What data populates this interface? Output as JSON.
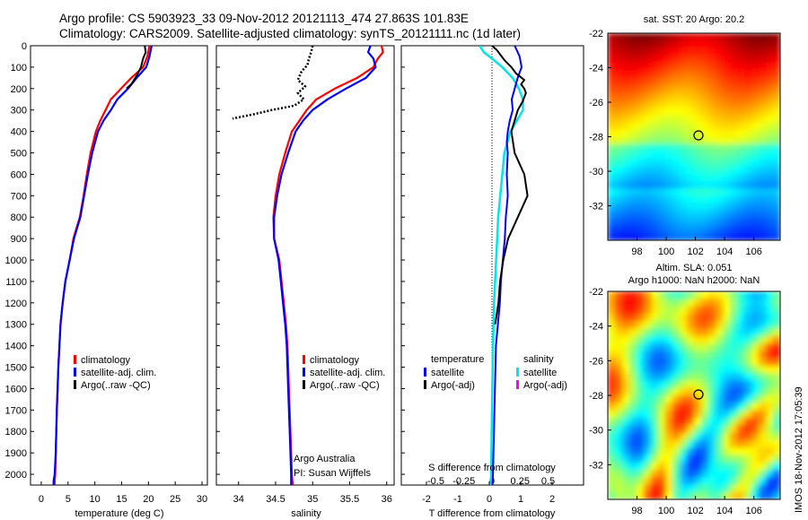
{
  "header": {
    "line1": "Argo profile: CS 5903923_33 09-Nov-2012 20121113_474 27.863S 101.83E",
    "line2": "Climatology: CARS2009. Satellite-adjusted climatology: synTS_20121111.nc (1d later)"
  },
  "side_text": "IMOS 18-Nov-2012 17:05:39",
  "colors": {
    "climatology": "#ff0000",
    "satellite": "#0000ff",
    "argo": "#000000",
    "satellite_salinity": "#00e5e5",
    "argo_salinity_adj": "#ff00ff"
  },
  "chart_data": [
    {
      "type": "line",
      "name": "temperature-profile",
      "xlabel": "temperature (deg C)",
      "ylabel": "",
      "xlim": [
        -2,
        31
      ],
      "ylim": [
        0,
        2050
      ],
      "y_reversed": true,
      "xticks": [
        "0",
        "5",
        "10",
        "15",
        "20",
        "25",
        "30"
      ],
      "yticks": [
        "0",
        "100",
        "200",
        "300",
        "400",
        "500",
        "600",
        "700",
        "800",
        "900",
        "1000",
        "1100",
        "1200",
        "1300",
        "1400",
        "1500",
        "1600",
        "1700",
        "1800",
        "1900",
        "2000"
      ],
      "legend": [
        "climatology",
        "satellite-adj. clim.",
        "Argo(..raw -QC)"
      ],
      "series": [
        {
          "name": "climatology",
          "x": [
            20.2,
            19.8,
            19.0,
            16.8,
            14.9,
            13.0,
            12.0,
            11.0,
            10.2,
            9.2,
            8.5,
            7.9,
            7.2,
            6.6,
            6.0,
            5.3,
            4.5,
            4.0,
            3.6,
            3.2,
            2.9,
            2.7,
            2.6,
            2.5,
            2.5
          ],
          "y": [
            0,
            50,
            100,
            150,
            200,
            250,
            300,
            350,
            400,
            500,
            600,
            700,
            800,
            850,
            900,
            1000,
            1100,
            1200,
            1300,
            1500,
            1700,
            1900,
            2000,
            2030,
            2050
          ]
        },
        {
          "name": "satellite-adj. clim.",
          "x": [
            20.6,
            20.2,
            19.6,
            17.8,
            16.2,
            14.2,
            13.0,
            11.6,
            10.6,
            9.5,
            8.7,
            8.0,
            7.3,
            6.7,
            6.1,
            5.3,
            4.5,
            4.0,
            3.6,
            3.2,
            2.9,
            2.7,
            2.5,
            2.3,
            2.3
          ],
          "y": [
            0,
            50,
            100,
            150,
            200,
            250,
            300,
            350,
            400,
            500,
            600,
            700,
            800,
            850,
            900,
            1000,
            1100,
            1200,
            1300,
            1500,
            1700,
            1900,
            2000,
            2030,
            2050
          ]
        },
        {
          "name": "Argo(..raw -QC)",
          "x": [
            19.3,
            19.5,
            19.0,
            18.6,
            17.8,
            16.8,
            15.9
          ],
          "y": [
            0,
            30,
            60,
            100,
            140,
            180,
            200
          ]
        }
      ]
    },
    {
      "type": "line",
      "name": "salinity-profile",
      "xlabel": "salinity",
      "xlim": [
        33.7,
        36.1
      ],
      "ylim": [
        0,
        2050
      ],
      "y_reversed": true,
      "xticks": [
        "34",
        "34.5",
        "35",
        "35.5",
        "36"
      ],
      "legend": [
        "climatology",
        "satellite-adj. clim.",
        "Argo(..raw -QC)"
      ],
      "annotation": [
        "Argo Australia",
        "PI: Susan Wijffels"
      ],
      "series": [
        {
          "name": "climatology",
          "x": [
            35.93,
            35.95,
            35.88,
            35.82,
            35.6,
            35.3,
            35.05,
            34.92,
            34.82,
            34.72,
            34.63,
            34.55,
            34.5,
            34.47,
            34.48,
            34.55,
            34.58,
            34.61,
            34.64,
            34.66,
            34.68,
            34.7,
            34.72,
            34.73
          ],
          "y": [
            0,
            30,
            60,
            100,
            150,
            200,
            250,
            300,
            350,
            400,
            500,
            600,
            700,
            800,
            900,
            1000,
            1100,
            1200,
            1300,
            1400,
            1600,
            1800,
            2000,
            2050
          ]
        },
        {
          "name": "satellite-adj. clim.",
          "x": [
            35.78,
            35.75,
            35.82,
            35.85,
            35.72,
            35.45,
            35.2,
            35.0,
            34.87,
            34.77,
            34.67,
            34.58,
            34.52,
            34.48,
            34.48,
            34.54,
            34.57,
            34.6,
            34.63,
            34.65,
            34.67,
            34.69,
            34.71,
            34.71
          ],
          "y": [
            0,
            30,
            60,
            100,
            150,
            200,
            250,
            300,
            350,
            400,
            500,
            600,
            700,
            800,
            900,
            1000,
            1100,
            1200,
            1300,
            1400,
            1600,
            1800,
            2000,
            2050
          ]
        },
        {
          "name": "Argo(..raw -QC)",
          "x": [
            35.0,
            34.98,
            34.95,
            34.93,
            34.85,
            34.8,
            34.9,
            34.8,
            34.88,
            34.75,
            34.45,
            34.2,
            33.92
          ],
          "y": [
            0,
            30,
            60,
            90,
            120,
            160,
            190,
            220,
            250,
            280,
            300,
            320,
            340
          ]
        }
      ]
    },
    {
      "type": "line",
      "name": "difference-profile",
      "xlabel": "T difference from climatology",
      "xlabel2": "S difference from climatology",
      "xlim": [
        -2.8,
        3.0
      ],
      "ylim": [
        0,
        2050
      ],
      "y_reversed": true,
      "xticks": [
        "-2",
        "-1",
        "0",
        "1",
        "2"
      ],
      "xticks2": [
        "-0.5",
        "-0.25",
        "0",
        "0.25",
        "0.5"
      ],
      "legend_groups": {
        "temperature": [
          "satellite",
          "Argo(-adj)"
        ],
        "salinity": [
          "satellite",
          "Argo(-adj)"
        ]
      },
      "legend_headers": [
        "temperature",
        "salinity"
      ],
      "series": [
        {
          "name": "temperature satellite",
          "x": [
            2.3,
            2.8,
            3.0,
            2.6,
            2.3,
            2.0,
            2.1,
            1.8,
            1.6,
            1.5,
            1.6,
            1.5,
            1.6,
            1.4,
            1.3,
            1.1,
            0.9,
            0.8,
            0.6,
            0.4,
            0.3,
            0.2,
            0.1,
            0.05
          ],
          "y": [
            0,
            50,
            100,
            150,
            200,
            250,
            300,
            350,
            400,
            450,
            500,
            600,
            700,
            800,
            900,
            1000,
            1100,
            1200,
            1300,
            1400,
            1600,
            1800,
            2000,
            2050
          ]
        },
        {
          "name": "temperature Argo(-adj)",
          "x": [
            0.0,
            0.3,
            0.5,
            0.8,
            1.2,
            1.5,
            2.0,
            1.8,
            2.0,
            2.1,
            1.9,
            1.6,
            1.4,
            1.2,
            1.4,
            2.0,
            2.2,
            1.6,
            1.0,
            0.7,
            0.5,
            0.4,
            0.2
          ],
          "y": [
            0,
            20,
            40,
            70,
            100,
            130,
            160,
            180,
            200,
            220,
            260,
            300,
            350,
            400,
            500,
            600,
            700,
            800,
            900,
            1000,
            1100,
            1200,
            1300
          ]
        },
        {
          "name": "salinity satellite",
          "x": [
            -0.6,
            -0.4,
            0.0,
            0.5,
            1.0,
            1.3,
            1.5,
            1.5,
            1.2,
            0.9,
            0.6,
            0.5,
            0.4,
            0.3,
            0.25,
            0.2,
            0.15,
            0.1,
            0.05,
            0.0,
            -0.05
          ],
          "y": [
            0,
            30,
            60,
            100,
            150,
            200,
            250,
            300,
            350,
            400,
            500,
            600,
            700,
            800,
            900,
            1000,
            1100,
            1200,
            1400,
            1700,
            2050
          ]
        }
      ]
    },
    {
      "type": "heatmap",
      "name": "sst-map",
      "title": "sat. SST: 20 Argo: 20.2",
      "xticks": [
        "98",
        "100",
        "102",
        "104",
        "106"
      ],
      "yticks": [
        "-22",
        "-24",
        "-26",
        "-28",
        "-30",
        "-32"
      ],
      "xlim": [
        96,
        107.8
      ],
      "ylim": [
        -34,
        -22
      ],
      "argo_position": [
        101.83,
        -27.863
      ]
    },
    {
      "type": "heatmap",
      "name": "sla-map",
      "title": "Altim. SLA: 0.051",
      "subtitle": "Argo h1000: NaN h2000: NaN",
      "xticks": [
        "98",
        "100",
        "102",
        "104",
        "106"
      ],
      "yticks": [
        "-22",
        "-24",
        "-26",
        "-28",
        "-30",
        "-32"
      ],
      "xlim": [
        96,
        107.8
      ],
      "ylim": [
        -34,
        -22
      ],
      "argo_position": [
        101.83,
        -27.863
      ]
    }
  ]
}
